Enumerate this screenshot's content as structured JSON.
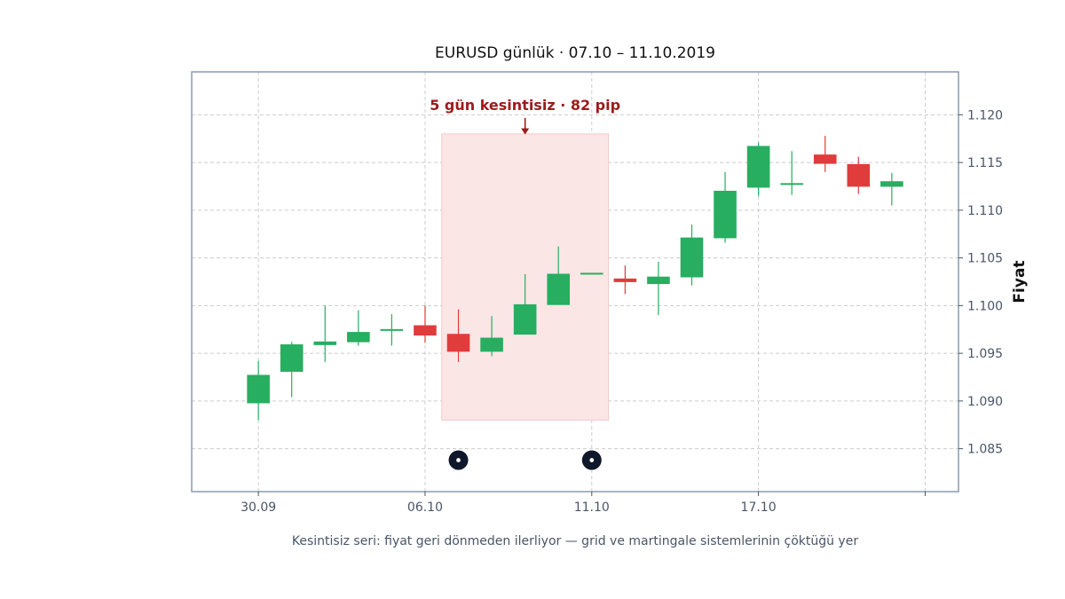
{
  "chart_data": {
    "type": "candlestick",
    "title": "EURUSD günlük · 07.10 – 11.10.2019",
    "ylabel": "Fiyat",
    "xlabel": "",
    "ylim": [
      1.0805,
      1.1245
    ],
    "y_ticks": [
      "1.085",
      "1.090",
      "1.095",
      "1.100",
      "1.105",
      "1.110",
      "1.115",
      "1.120"
    ],
    "y_tick_values": [
      1.085,
      1.09,
      1.095,
      1.1,
      1.105,
      1.11,
      1.115,
      1.12
    ],
    "x_ticks": [
      {
        "label": "30.09",
        "index": 0
      },
      {
        "label": "06.10",
        "index": 5
      },
      {
        "label": "11.10",
        "index": 10
      },
      {
        "label": "17.10",
        "index": 15
      },
      {
        "label": "",
        "index": 20
      }
    ],
    "x_range": [
      -2,
      21
    ],
    "grid": true,
    "up_color": "#27ae60",
    "down_color": "#e03c3c",
    "candles": [
      {
        "o": 1.0898,
        "h": 1.0942,
        "l": 1.088,
        "c": 1.0927
      },
      {
        "o": 1.0931,
        "h": 1.0962,
        "l": 1.0904,
        "c": 1.0959
      },
      {
        "o": 1.0959,
        "h": 1.1,
        "l": 1.0941,
        "c": 1.0962
      },
      {
        "o": 1.0962,
        "h": 1.0995,
        "l": 1.0958,
        "c": 1.0972
      },
      {
        "o": 1.0975,
        "h": 1.0991,
        "l": 1.0958,
        "c": 1.0975
      },
      {
        "o": 1.0979,
        "h": 1.1,
        "l": 1.0961,
        "c": 1.0969
      },
      {
        "o": 1.097,
        "h": 1.0996,
        "l": 1.0941,
        "c": 1.0952
      },
      {
        "o": 1.0952,
        "h": 1.0989,
        "l": 1.0947,
        "c": 1.0966
      },
      {
        "o": 1.097,
        "h": 1.1033,
        "l": 1.097,
        "c": 1.1001
      },
      {
        "o": 1.1001,
        "h": 1.1062,
        "l": 1.1001,
        "c": 1.1033
      },
      {
        "o": 1.1034,
        "h": 1.1034,
        "l": 1.1034,
        "c": 1.1034
      },
      {
        "o": 1.1028,
        "h": 1.1042,
        "l": 1.1012,
        "c": 1.1025
      },
      {
        "o": 1.1023,
        "h": 1.1046,
        "l": 1.099,
        "c": 1.103
      },
      {
        "o": 1.103,
        "h": 1.1085,
        "l": 1.1021,
        "c": 1.1071
      },
      {
        "o": 1.1071,
        "h": 1.114,
        "l": 1.1066,
        "c": 1.112
      },
      {
        "o": 1.1124,
        "h": 1.1171,
        "l": 1.1115,
        "c": 1.1167
      },
      {
        "o": 1.1128,
        "h": 1.1162,
        "l": 1.1116,
        "c": 1.1128
      },
      {
        "o": 1.1158,
        "h": 1.1178,
        "l": 1.114,
        "c": 1.1149
      },
      {
        "o": 1.1148,
        "h": 1.1156,
        "l": 1.1117,
        "c": 1.1125
      },
      {
        "o": 1.1125,
        "h": 1.1139,
        "l": 1.1105,
        "c": 1.113
      }
    ],
    "highlight": {
      "start_index": 5.5,
      "end_index": 10.5,
      "y_low": 1.088,
      "y_high": 1.118,
      "color": "#fbe6e6"
    },
    "annotation": {
      "text": "5 gün kesintisiz · 82 pip",
      "x_index": 8,
      "text_y": 1.1205,
      "arrow_to_y": 1.1183,
      "color": "#9b1c1c"
    },
    "markers": [
      {
        "index": 6,
        "y": 1.0838
      },
      {
        "index": 10,
        "y": 1.0838
      }
    ],
    "marker_color": "#0f172a"
  },
  "caption": "Kesintisiz seri: fiyat geri dönmeden ilerliyor — grid ve martingale sistemlerinin çöktüğü yer"
}
